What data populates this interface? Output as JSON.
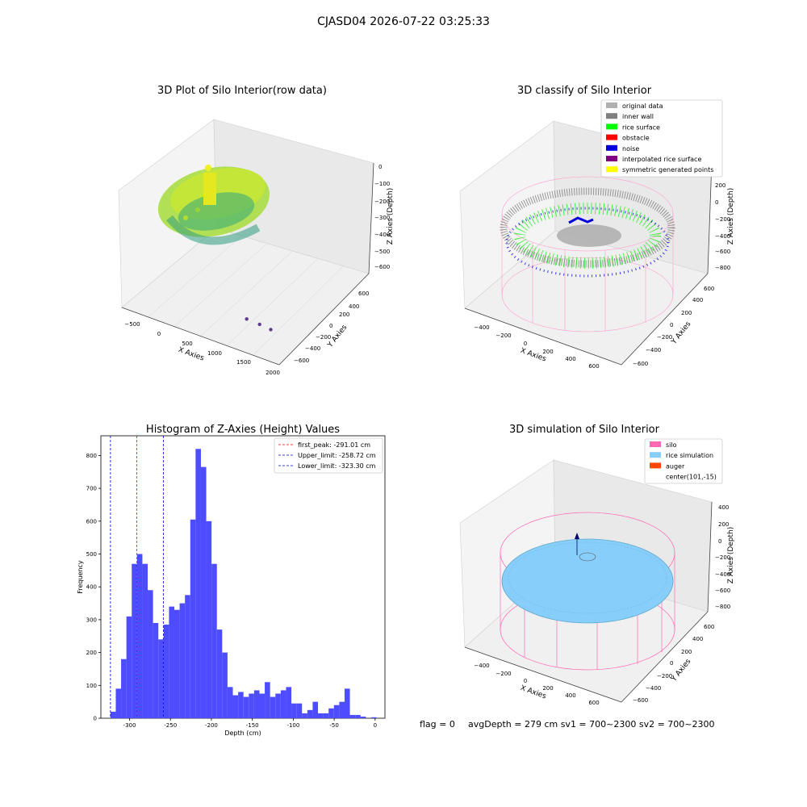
{
  "figure": {
    "suptitle": "CJASD04 2026-07-22 03:25:33",
    "footer": {
      "flag": "flag = 0",
      "avg": "avgDepth = 279 cm  sv1 = 700~2300  sv2 = 700~2300"
    }
  },
  "colors": {
    "hist_bar": "#4d4dff",
    "first_peak": "#ff0000",
    "limit_line": "#0000cc",
    "pane": "#f0f0f0",
    "silo": "#ff69b4",
    "rice_simulation": "#87cefa",
    "auger": "#ff4500"
  },
  "chart_data": [
    {
      "type": "scatter",
      "title": "3D Plot of Silo Interior(row data)",
      "xlabel": "X Axies",
      "ylabel": "Y Axies",
      "zlabel": "Z Axies (Depth)",
      "xticks": [
        "−500",
        "0",
        "500",
        "1000",
        "1500",
        "2000"
      ],
      "yticks": [
        "600",
        "400",
        "200",
        "0",
        "−200",
        "−400",
        "−600"
      ],
      "zticks": [
        "0",
        "−100",
        "−200",
        "−300",
        "−400",
        "−500",
        "−600"
      ],
      "outlier_points": [
        [
          1500,
          -100,
          -620
        ],
        [
          1650,
          -250,
          -610
        ],
        [
          1780,
          -380,
          -605
        ]
      ]
    },
    {
      "type": "scatter",
      "title": "3D classify of Silo Interior",
      "xlabel": "X Axies",
      "ylabel": "Y Axies",
      "zlabel": "Z Axies (Depth)",
      "xticks": [
        "−400",
        "−200",
        "0",
        "200",
        "400",
        "600"
      ],
      "yticks": [
        "600",
        "400",
        "200",
        "0",
        "−200",
        "−400",
        "−600"
      ],
      "zticks": [
        "200",
        "0",
        "−200",
        "−400",
        "−600",
        "−800"
      ],
      "zlabel_top": "0",
      "legend": [
        {
          "label": "original data",
          "color": "#b0b0b0"
        },
        {
          "label": "inner wall",
          "color": "#808080"
        },
        {
          "label": "rice surface",
          "color": "#00ff00"
        },
        {
          "label": "obstacle",
          "color": "#ff0000"
        },
        {
          "label": "noise",
          "color": "#0000dd"
        },
        {
          "label": "interpolated rice surface",
          "color": "#800080"
        },
        {
          "label": "symmetric generated points",
          "color": "#ffff00"
        }
      ]
    },
    {
      "type": "bar",
      "title": "Histogram of Z-Axies (Height) Values",
      "xlabel": "Depth (cm)",
      "ylabel": "Frequency",
      "xlim": [
        -335,
        12
      ],
      "ylim": [
        0,
        860
      ],
      "xticks": [
        -300,
        -250,
        -200,
        -150,
        -100,
        -50,
        0
      ],
      "yticks": [
        0,
        100,
        200,
        300,
        400,
        500,
        600,
        700,
        800
      ],
      "bin_start": -323.3,
      "bin_width": 6.5,
      "values": [
        20,
        90,
        180,
        310,
        470,
        500,
        470,
        390,
        290,
        240,
        285,
        340,
        330,
        350,
        375,
        605,
        820,
        765,
        600,
        470,
        270,
        200,
        95,
        70,
        80,
        65,
        75,
        85,
        75,
        110,
        65,
        75,
        85,
        95,
        45,
        45,
        15,
        25,
        50,
        15,
        15,
        30,
        40,
        50,
        90,
        10,
        10,
        5,
        0,
        3
      ],
      "vlines": [
        {
          "label": "first_peak: -291.01 cm",
          "x": -291.01,
          "color": "#ff0000"
        },
        {
          "label": "Upper_limit: -258.72 cm",
          "x": -258.72,
          "color": "#0000cc"
        },
        {
          "label": "Lower_limit: -323.30 cm",
          "x": -323.3,
          "color": "#0000cc"
        }
      ]
    },
    {
      "type": "area",
      "title": "3D simulation of Silo Interior",
      "xlabel": "X Axies",
      "ylabel": "Y Axies",
      "zlabel": "Z Axies (Depth)",
      "xticks": [
        "−400",
        "−200",
        "0",
        "200",
        "400",
        "600"
      ],
      "yticks": [
        "600",
        "400",
        "200",
        "0",
        "−200",
        "−400",
        "−600"
      ],
      "zticks": [
        "400",
        "200",
        "0",
        "−200",
        "−400",
        "−600",
        "−800"
      ],
      "legend": [
        {
          "label": "silo",
          "color": "#ff69b4"
        },
        {
          "label": "rice simulation",
          "color": "#87cefa"
        },
        {
          "label": "auger",
          "color": "#ff4500"
        },
        {
          "label": "center(101,-15)",
          "color": ""
        }
      ]
    }
  ]
}
